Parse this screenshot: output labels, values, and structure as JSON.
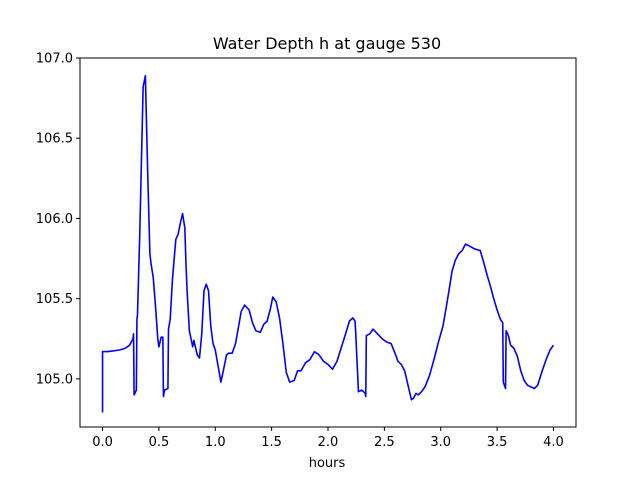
{
  "chart_data": {
    "type": "line",
    "title": "Water Depth h at gauge 530",
    "xlabel": "hours",
    "ylabel": "",
    "xlim": [
      -0.2,
      4.2
    ],
    "ylim": [
      104.7,
      107.0
    ],
    "xticks": [
      0.0,
      0.5,
      1.0,
      1.5,
      2.0,
      2.5,
      3.0,
      3.5,
      4.0
    ],
    "xtick_labels": [
      "0.0",
      "0.5",
      "1.0",
      "1.5",
      "2.0",
      "2.5",
      "3.0",
      "3.5",
      "4.0"
    ],
    "yticks": [
      105.0,
      105.5,
      106.0,
      106.5,
      107.0
    ],
    "ytick_labels": [
      "105.0",
      "105.5",
      "106.0",
      "106.5",
      "107.0"
    ],
    "grid": false,
    "series": [
      {
        "color": "#0000ff",
        "x": [
          0.0,
          0.0,
          0.05,
          0.1,
          0.15,
          0.2,
          0.24,
          0.27,
          0.275,
          0.28,
          0.3,
          0.305,
          0.31,
          0.33,
          0.36,
          0.38,
          0.4,
          0.42,
          0.43,
          0.45,
          0.47,
          0.49,
          0.5,
          0.52,
          0.535,
          0.54,
          0.55,
          0.58,
          0.585,
          0.6,
          0.62,
          0.65,
          0.67,
          0.69,
          0.71,
          0.73,
          0.74,
          0.75,
          0.77,
          0.8,
          0.81,
          0.84,
          0.86,
          0.88,
          0.9,
          0.92,
          0.94,
          0.96,
          0.98,
          1.0,
          1.02,
          1.05,
          1.08,
          1.1,
          1.12,
          1.15,
          1.18,
          1.2,
          1.23,
          1.26,
          1.3,
          1.33,
          1.36,
          1.4,
          1.43,
          1.46,
          1.49,
          1.51,
          1.54,
          1.57,
          1.6,
          1.63,
          1.66,
          1.7,
          1.73,
          1.76,
          1.8,
          1.84,
          1.88,
          1.92,
          1.96,
          2.0,
          2.04,
          2.08,
          2.12,
          2.16,
          2.19,
          2.22,
          2.24,
          2.245,
          2.27,
          2.3,
          2.33,
          2.335,
          2.34,
          2.37,
          2.4,
          2.44,
          2.48,
          2.52,
          2.56,
          2.6,
          2.62,
          2.65,
          2.68,
          2.71,
          2.74,
          2.76,
          2.78,
          2.8,
          2.83,
          2.86,
          2.9,
          2.94,
          2.98,
          3.02,
          3.05,
          3.08,
          3.1,
          3.13,
          3.16,
          3.19,
          3.22,
          3.25,
          3.3,
          3.35,
          3.38,
          3.41,
          3.44,
          3.47,
          3.5,
          3.53,
          3.55,
          3.555,
          3.57,
          3.575,
          3.58,
          3.6,
          3.62,
          3.65,
          3.68,
          3.71,
          3.74,
          3.77,
          3.8,
          3.83,
          3.86,
          3.9,
          3.94,
          3.97,
          4.0
        ],
        "y": [
          104.79,
          105.17,
          105.17,
          105.175,
          105.18,
          105.19,
          105.21,
          105.25,
          105.28,
          104.9,
          104.93,
          105.37,
          105.4,
          105.9,
          106.82,
          106.89,
          106.3,
          105.78,
          105.72,
          105.63,
          105.45,
          105.25,
          105.2,
          105.26,
          105.26,
          104.89,
          104.93,
          104.94,
          105.31,
          105.37,
          105.62,
          105.87,
          105.9,
          105.97,
          106.03,
          105.94,
          105.72,
          105.55,
          105.3,
          105.2,
          105.24,
          105.15,
          105.13,
          105.28,
          105.55,
          105.59,
          105.55,
          105.33,
          105.22,
          105.18,
          105.1,
          104.98,
          105.08,
          105.15,
          105.16,
          105.16,
          105.22,
          105.3,
          105.42,
          105.46,
          105.43,
          105.35,
          105.3,
          105.29,
          105.34,
          105.36,
          105.44,
          105.51,
          105.48,
          105.38,
          105.22,
          105.04,
          104.98,
          104.99,
          105.05,
          105.05,
          105.1,
          105.12,
          105.17,
          105.15,
          105.11,
          105.09,
          105.06,
          105.11,
          105.2,
          105.29,
          105.36,
          105.38,
          105.36,
          105.3,
          104.92,
          104.93,
          104.91,
          104.89,
          105.27,
          105.28,
          105.31,
          105.28,
          105.25,
          105.23,
          105.22,
          105.15,
          105.11,
          105.09,
          105.05,
          104.96,
          104.87,
          104.88,
          104.91,
          104.9,
          104.92,
          104.95,
          105.02,
          105.12,
          105.23,
          105.33,
          105.45,
          105.58,
          105.67,
          105.74,
          105.78,
          105.8,
          105.84,
          105.83,
          105.81,
          105.8,
          105.73,
          105.65,
          105.58,
          105.5,
          105.43,
          105.37,
          105.35,
          104.98,
          104.95,
          104.94,
          105.3,
          105.27,
          105.21,
          105.19,
          105.14,
          105.05,
          104.99,
          104.96,
          104.95,
          104.94,
          104.96,
          105.05,
          105.13,
          105.18,
          105.21
        ]
      }
    ]
  }
}
